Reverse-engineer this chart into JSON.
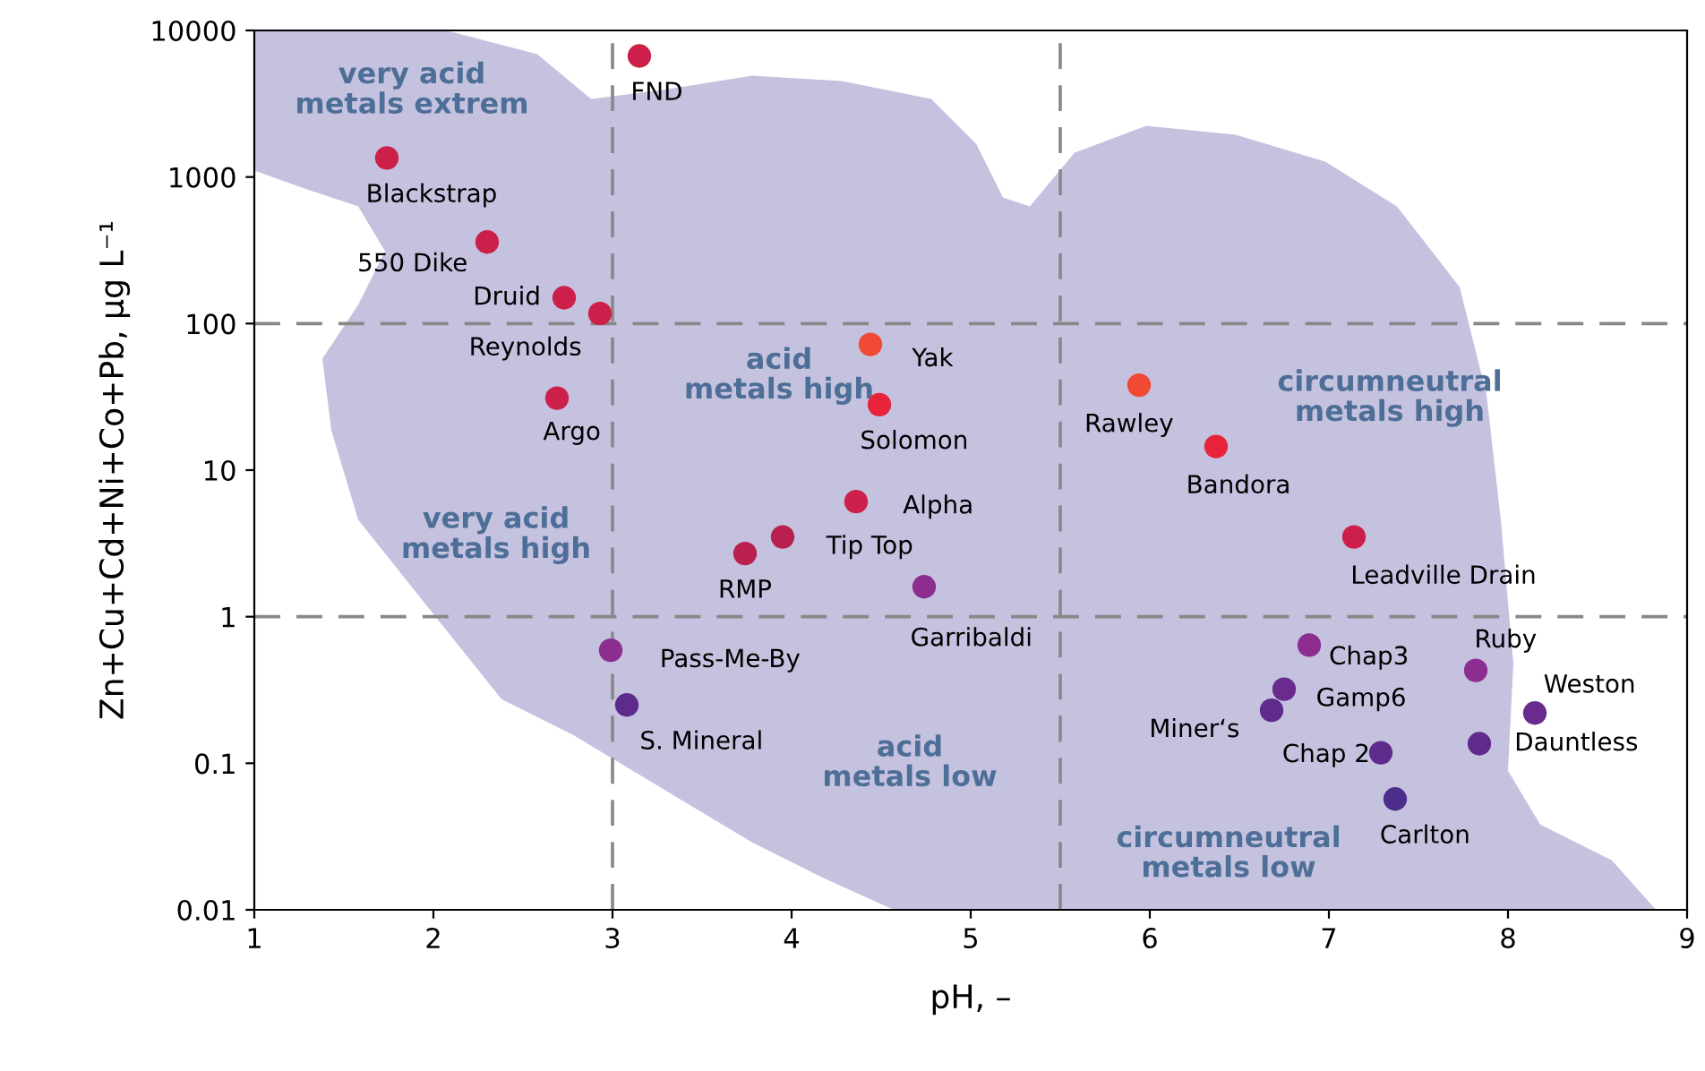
{
  "chart_data": {
    "type": "scatter",
    "xlabel": "pH, –",
    "ylabel": "Zn+Cu+Cd+Ni+Co+Pb, µg L⁻¹",
    "log": "y",
    "xlim": [
      1,
      9
    ],
    "ylim": [
      0.01,
      10000
    ],
    "xticks": [
      1,
      2,
      3,
      4,
      5,
      6,
      7,
      8,
      9
    ],
    "yticks": [
      0.01,
      0.1,
      1,
      10,
      100,
      1000,
      10000
    ],
    "grid": false,
    "legend": false,
    "marker": "circle",
    "x": [
      3.15,
      1.74,
      2.3,
      2.73,
      2.93,
      2.69,
      4.44,
      4.49,
      4.36,
      3.95,
      3.74,
      4.74,
      2.99,
      3.08,
      5.94,
      6.37,
      7.14,
      6.89,
      7.82,
      8.15,
      6.75,
      6.68,
      7.29,
      7.37,
      7.84
    ],
    "values": [
      6700,
      1350,
      360,
      150,
      117,
      31,
      72,
      28,
      6.1,
      3.5,
      2.7,
      1.6,
      0.59,
      0.25,
      38,
      14.5,
      3.5,
      0.64,
      0.43,
      0.22,
      0.32,
      0.23,
      0.118,
      0.057,
      0.136
    ],
    "colors": [
      "#cc1f4a",
      "#cc1f4a",
      "#cc1f4a",
      "#cc1f4a",
      "#cc1f4a",
      "#cc1f4a",
      "#f04a35",
      "#e8243a",
      "#cc1f4a",
      "#b9204f",
      "#b9204f",
      "#8c2d8f",
      "#8c2d8f",
      "#5e2b8c",
      "#f04a35",
      "#e8243a",
      "#cc1f4a",
      "#8c2d8f",
      "#8c2d8f",
      "#6a2b8e",
      "#6a2b8e",
      "#5e2b8c",
      "#5e2b8c",
      "#4c2d8c",
      "#5e2b8c"
    ],
    "ref_lines": [
      {
        "axis": "x",
        "value": 3,
        "color": "#888888",
        "line_style": "dashed"
      },
      {
        "axis": "x",
        "value": 5.5,
        "color": "#888888",
        "line_style": "dashed"
      },
      {
        "axis": "y",
        "value": 1,
        "color": "#888888",
        "line_style": "dashed"
      },
      {
        "axis": "y",
        "value": 100,
        "color": "#888888",
        "line_style": "dashed"
      }
    ],
    "annotations": [
      {
        "text": "FND",
        "x": 3.15,
        "y": 6700
      },
      {
        "text": "Blackstrap",
        "x": 1.74,
        "y": 1350
      },
      {
        "text": "550 Dike",
        "x": 2.3,
        "y": 360
      },
      {
        "text": "Druid",
        "x": 2.73,
        "y": 150
      },
      {
        "text": "Reynolds",
        "x": 2.93,
        "y": 117
      },
      {
        "text": "Argo",
        "x": 2.69,
        "y": 31
      },
      {
        "text": "Yak",
        "x": 4.44,
        "y": 72
      },
      {
        "text": "Solomon",
        "x": 4.49,
        "y": 28
      },
      {
        "text": "Alpha",
        "x": 4.36,
        "y": 6.1
      },
      {
        "text": "Tip Top",
        "x": 3.95,
        "y": 3.5
      },
      {
        "text": "RMP",
        "x": 3.74,
        "y": 2.7
      },
      {
        "text": "Garribaldi",
        "x": 4.74,
        "y": 1.6
      },
      {
        "text": "Pass-Me-By",
        "x": 2.99,
        "y": 0.59
      },
      {
        "text": "S. Mineral",
        "x": 3.08,
        "y": 0.25
      },
      {
        "text": "Rawley",
        "x": 5.94,
        "y": 38
      },
      {
        "text": "Bandora",
        "x": 6.37,
        "y": 14.5
      },
      {
        "text": "Leadville Drain",
        "x": 7.14,
        "y": 3.5
      },
      {
        "text": "Chap3",
        "x": 6.89,
        "y": 0.64
      },
      {
        "text": "Ruby",
        "x": 7.82,
        "y": 0.43
      },
      {
        "text": "Weston",
        "x": 8.15,
        "y": 0.22
      },
      {
        "text": "Gamp6",
        "x": 6.75,
        "y": 0.32
      },
      {
        "text": "Miner‘s",
        "x": 6.68,
        "y": 0.23
      },
      {
        "text": "Chap 2",
        "x": 7.29,
        "y": 0.118
      },
      {
        "text": "Carlton",
        "x": 7.37,
        "y": 0.057
      },
      {
        "text": "Dauntless",
        "x": 7.84,
        "y": 0.136
      },
      "very acid\nmetals extrem",
      "acid\nmetals high",
      "very acid\nmetals high",
      "acid\nmetals low",
      "circumneutral\nmetals high",
      "circumneutral\nmetals low"
    ]
  }
}
